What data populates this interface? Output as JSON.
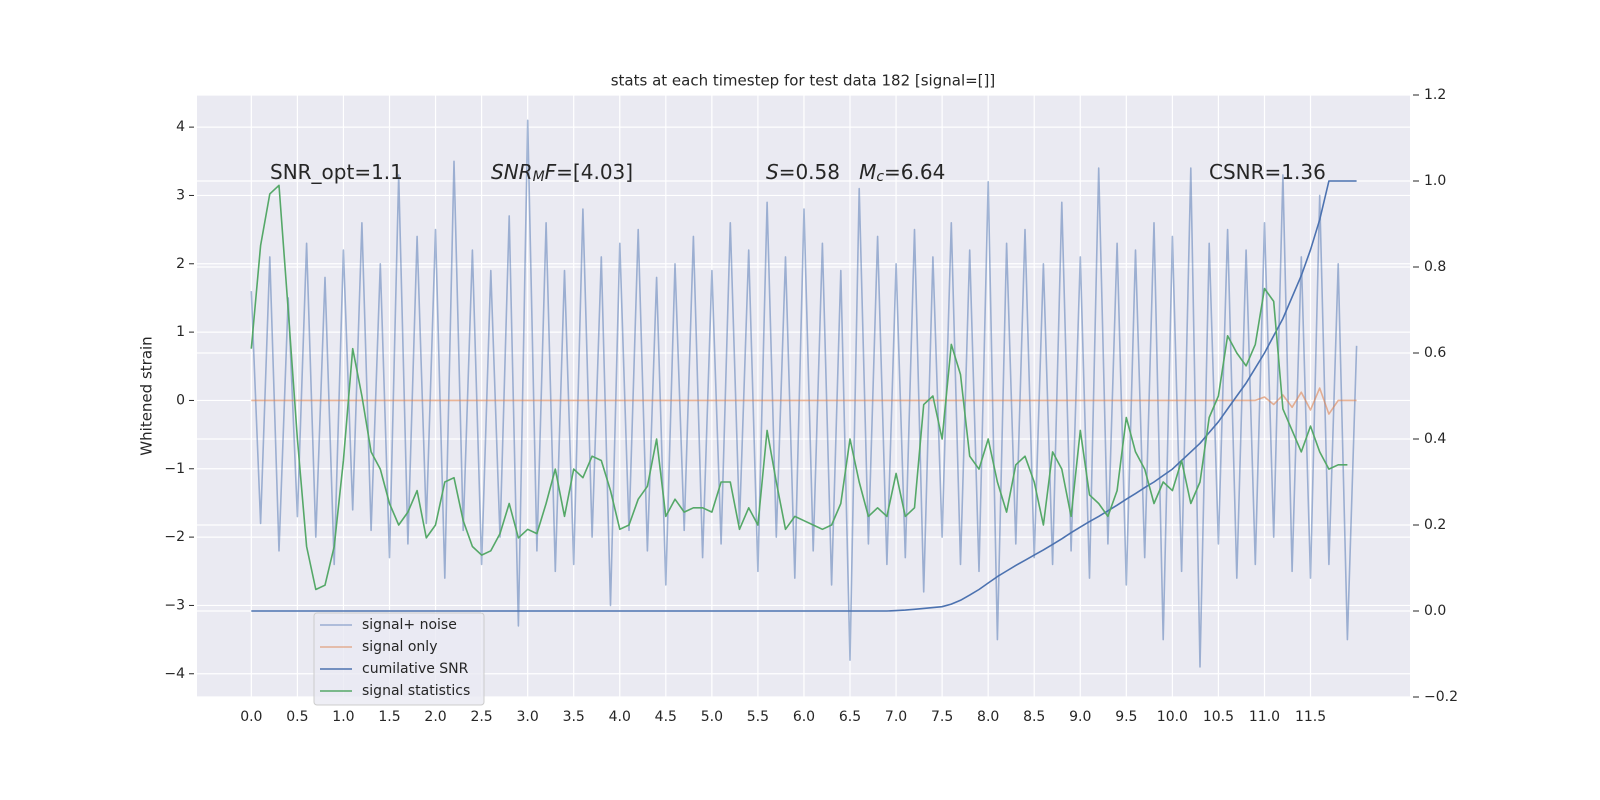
{
  "chart_data": {
    "type": "line",
    "title": "stats at each timestep for test data 182 [signal=[]]",
    "ylabel": "Whitened strain",
    "grid": true,
    "legend": "lower left",
    "x": [
      0.0,
      0.1,
      0.2,
      0.3,
      0.4,
      0.5,
      0.6,
      0.7,
      0.8,
      0.9,
      1.0,
      1.1,
      1.2,
      1.3,
      1.4,
      1.5,
      1.6,
      1.7,
      1.8,
      1.9,
      2.0,
      2.1,
      2.2,
      2.3,
      2.4,
      2.5,
      2.6,
      2.7,
      2.8,
      2.9,
      3.0,
      3.1,
      3.2,
      3.3,
      3.4,
      3.5,
      3.6,
      3.7,
      3.8,
      3.9,
      4.0,
      4.1,
      4.2,
      4.3,
      4.4,
      4.5,
      4.6,
      4.7,
      4.8,
      4.9,
      5.0,
      5.1,
      5.2,
      5.3,
      5.4,
      5.5,
      5.6,
      5.7,
      5.8,
      5.9,
      6.0,
      6.1,
      6.2,
      6.3,
      6.4,
      6.5,
      6.6,
      6.7,
      6.8,
      6.9,
      7.0,
      7.1,
      7.2,
      7.3,
      7.4,
      7.5,
      7.6,
      7.7,
      7.8,
      7.9,
      8.0,
      8.1,
      8.2,
      8.3,
      8.4,
      8.5,
      8.6,
      8.7,
      8.8,
      8.9,
      9.0,
      9.1,
      9.2,
      9.3,
      9.4,
      9.5,
      9.6,
      9.7,
      9.8,
      9.9,
      10.0,
      10.1,
      10.2,
      10.3,
      10.4,
      10.5,
      10.6,
      10.7,
      10.8,
      10.9,
      11.0,
      11.1,
      11.2,
      11.3,
      11.4,
      11.5,
      11.6,
      11.7,
      11.8,
      11.9,
      12.0
    ],
    "xlim": [
      -0.59,
      12.58
    ],
    "xticks": [
      {
        "value": 0,
        "label": "0.0"
      },
      {
        "value": 0.5,
        "label": "0.5"
      },
      {
        "value": 1,
        "label": "1.0"
      },
      {
        "value": 1.5,
        "label": "1.5"
      },
      {
        "value": 2,
        "label": "2.0"
      },
      {
        "value": 2.5,
        "label": "2.5"
      },
      {
        "value": 3,
        "label": "3.0"
      },
      {
        "value": 3.5,
        "label": "3.5"
      },
      {
        "value": 4,
        "label": "4.0"
      },
      {
        "value": 4.5,
        "label": "4.5"
      },
      {
        "value": 5,
        "label": "5.0"
      },
      {
        "value": 5.5,
        "label": "5.5"
      },
      {
        "value": 6,
        "label": "6.0"
      },
      {
        "value": 6.5,
        "label": "6.5"
      },
      {
        "value": 7,
        "label": "7.0"
      },
      {
        "value": 7.5,
        "label": "7.5"
      },
      {
        "value": 8,
        "label": "8.0"
      },
      {
        "value": 8.5,
        "label": "8.5"
      },
      {
        "value": 9,
        "label": "9.0"
      },
      {
        "value": 9.5,
        "label": "9.5"
      },
      {
        "value": 10,
        "label": "10.0"
      },
      {
        "value": 10.5,
        "label": "10.5"
      },
      {
        "value": 11,
        "label": "11.0"
      },
      {
        "value": 11.5,
        "label": "11.5"
      }
    ],
    "ylim": [
      -4.34,
      4.47
    ],
    "yticks": [
      {
        "value": -4,
        "label": "−4"
      },
      {
        "value": -3,
        "label": "−3"
      },
      {
        "value": -2,
        "label": "−2"
      },
      {
        "value": -1,
        "label": "−1"
      },
      0,
      1,
      2,
      3,
      4
    ],
    "y2lim": [
      -0.2,
      1.2
    ],
    "y2ticks": [
      {
        "value": -0.2,
        "label": "−0.2"
      },
      {
        "value": 0,
        "label": "0.0"
      },
      {
        "value": 0.2,
        "label": "0.2"
      },
      {
        "value": 0.4,
        "label": "0.4"
      },
      {
        "value": 0.6,
        "label": "0.6"
      },
      {
        "value": 0.8,
        "label": "0.8"
      },
      {
        "value": 1,
        "label": "1.0"
      },
      {
        "value": 1.2,
        "label": "1.2"
      }
    ],
    "annotations": [
      [
        {
          "text": "SNR_opt=1.1"
        }
      ],
      [
        {
          "text": "SNR",
          "italic": true
        },
        {
          "text": "M",
          "italic": true,
          "sub": true
        },
        {
          "text": "F",
          "italic": true
        },
        {
          "text": "=[4.03]"
        }
      ],
      [
        {
          "text": "S",
          "italic": true
        },
        {
          "text": "=0.58   "
        },
        {
          "text": "M",
          "italic": true
        },
        {
          "text": "c",
          "italic": true,
          "sub": true
        },
        {
          "text": "=6.64"
        }
      ],
      [
        {
          "text": "CSNR=1.36"
        }
      ]
    ],
    "series": [
      {
        "name": "signal+ noise",
        "color": "#4c72b0",
        "alpha": 0.5,
        "values": [
          1.6,
          -1.8,
          2.1,
          -2.2,
          1.5,
          -1.7,
          2.3,
          -2.0,
          1.8,
          -2.4,
          2.2,
          -1.6,
          2.6,
          -1.9,
          2.0,
          -2.3,
          3.3,
          -2.1,
          2.4,
          -1.8,
          2.5,
          -2.6,
          3.5,
          -1.9,
          2.2,
          -2.4,
          1.9,
          -2.0,
          2.7,
          -3.3,
          4.1,
          -2.2,
          2.6,
          -2.5,
          1.9,
          -2.4,
          2.8,
          -2.0,
          2.1,
          -3.0,
          2.3,
          -1.9,
          2.5,
          -2.2,
          1.8,
          -2.7,
          2.0,
          -1.9,
          2.4,
          -2.3,
          1.9,
          -2.1,
          2.6,
          -1.8,
          2.2,
          -2.5,
          2.9,
          -2.0,
          2.1,
          -2.6,
          2.8,
          -2.2,
          2.3,
          -2.7,
          1.9,
          -3.8,
          3.1,
          -2.1,
          2.4,
          -2.4,
          2.0,
          -2.3,
          2.5,
          -2.8,
          2.1,
          -2.0,
          2.6,
          -2.4,
          2.2,
          -2.5,
          3.2,
          -3.5,
          2.3,
          -2.1,
          2.5,
          -2.3,
          2.0,
          -2.4,
          2.9,
          -2.2,
          2.1,
          -2.6,
          3.4,
          -2.1,
          2.3,
          -2.7,
          2.2,
          -2.3,
          2.6,
          -3.5,
          2.4,
          -2.5,
          3.4,
          -3.9,
          2.3,
          -2.1,
          2.5,
          -2.6,
          2.2,
          -2.4,
          2.6,
          -2.0,
          3.3,
          -2.5,
          2.1,
          -2.6,
          3.0,
          -2.4,
          2.0,
          -3.5,
          0.8
        ]
      },
      {
        "name": "signal only",
        "color": "#dd8452",
        "alpha": 0.6,
        "values": [
          0,
          0,
          0,
          0,
          0,
          0,
          0,
          0,
          0,
          0,
          0,
          0,
          0,
          0,
          0,
          0,
          0,
          0,
          0,
          0,
          0,
          0,
          0,
          0,
          0,
          0,
          0,
          0,
          0,
          0,
          0,
          0,
          0,
          0,
          0,
          0,
          0,
          0,
          0,
          0,
          0,
          0,
          0,
          0,
          0,
          0,
          0,
          0,
          0,
          0,
          0,
          0,
          0,
          0,
          0,
          0,
          0,
          0,
          0,
          0,
          0,
          0,
          0,
          0,
          0,
          0,
          0,
          0,
          0,
          0,
          0,
          0,
          0,
          0,
          0,
          0,
          0,
          0,
          0,
          0,
          0,
          0,
          0,
          0,
          0,
          0,
          0,
          0,
          0,
          0,
          0,
          0,
          0,
          0,
          0,
          0,
          0,
          0,
          0,
          0,
          0,
          0,
          0,
          0,
          0,
          0,
          0,
          0,
          0,
          0,
          0.05,
          -0.06,
          0.08,
          -0.1,
          0.12,
          -0.14,
          0.18,
          -0.2,
          0,
          0,
          0
        ]
      },
      {
        "name": "cumilative SNR",
        "color": "#4c72b0",
        "axis": "y2",
        "values": [
          0,
          0,
          0,
          0,
          0,
          0,
          0,
          0,
          0,
          0,
          0,
          0,
          0,
          0,
          0,
          0,
          0,
          0,
          0,
          0,
          0,
          0,
          0,
          0,
          0,
          0,
          0,
          0,
          0,
          0,
          0,
          0,
          0,
          0,
          0,
          0,
          0,
          0,
          0,
          0,
          0,
          0,
          0,
          0,
          0,
          0,
          0,
          0,
          0,
          0,
          0,
          0,
          0,
          0,
          0,
          0,
          0,
          0,
          0,
          0,
          0,
          0,
          0,
          0,
          0,
          0,
          0,
          0,
          0,
          0,
          0.001,
          0.002,
          0.004,
          0.006,
          0.008,
          0.01,
          0.016,
          0.025,
          0.037,
          0.05,
          0.065,
          0.08,
          0.093,
          0.106,
          0.118,
          0.13,
          0.142,
          0.155,
          0.168,
          0.182,
          0.195,
          0.208,
          0.22,
          0.233,
          0.246,
          0.26,
          0.273,
          0.287,
          0.3,
          0.315,
          0.33,
          0.35,
          0.37,
          0.39,
          0.415,
          0.44,
          0.47,
          0.5,
          0.53,
          0.565,
          0.6,
          0.64,
          0.68,
          0.73,
          0.78,
          0.84,
          0.91,
          1.0,
          1.0,
          1.0,
          1.0
        ]
      },
      {
        "name": "signal statistics",
        "color": "#55a868",
        "axis": "y2",
        "values": [
          0.61,
          0.85,
          0.97,
          0.99,
          0.7,
          0.4,
          0.15,
          0.05,
          0.06,
          0.15,
          0.35,
          0.61,
          0.5,
          0.37,
          0.33,
          0.25,
          0.2,
          0.23,
          0.28,
          0.17,
          0.2,
          0.3,
          0.31,
          0.21,
          0.15,
          0.13,
          0.14,
          0.18,
          0.25,
          0.17,
          0.19,
          0.18,
          0.25,
          0.33,
          0.22,
          0.33,
          0.31,
          0.36,
          0.35,
          0.28,
          0.19,
          0.2,
          0.26,
          0.29,
          0.4,
          0.22,
          0.26,
          0.23,
          0.24,
          0.24,
          0.23,
          0.3,
          0.3,
          0.19,
          0.24,
          0.2,
          0.42,
          0.3,
          0.19,
          0.22,
          0.21,
          0.2,
          0.19,
          0.2,
          0.25,
          0.4,
          0.3,
          0.22,
          0.24,
          0.22,
          0.32,
          0.22,
          0.24,
          0.48,
          0.5,
          0.4,
          0.62,
          0.55,
          0.36,
          0.33,
          0.4,
          0.3,
          0.23,
          0.34,
          0.36,
          0.3,
          0.2,
          0.37,
          0.33,
          0.22,
          0.42,
          0.27,
          0.25,
          0.22,
          0.28,
          0.45,
          0.37,
          0.33,
          0.25,
          0.3,
          0.28,
          0.35,
          0.25,
          0.3,
          0.45,
          0.5,
          0.64,
          0.6,
          0.57,
          0.62,
          0.75,
          0.72,
          0.47,
          0.42,
          0.37,
          0.43,
          0.37,
          0.33,
          0.34,
          0.34,
          null
        ]
      }
    ]
  }
}
